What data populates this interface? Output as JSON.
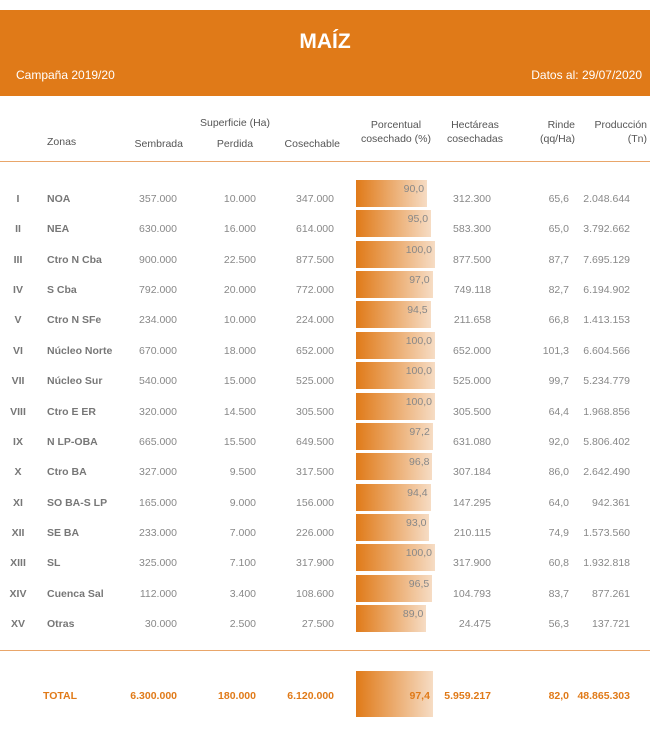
{
  "header": {
    "title": "MAÍZ",
    "campaign": "Campaña 2019/20",
    "date": "Datos al: 29/07/2020"
  },
  "columns": {
    "zonas": "Zonas",
    "superficie": "Superficie (Ha)",
    "sembrada": "Sembrada",
    "perdida": "Perdida",
    "cosechable": "Cosechable",
    "porcentual": "Porcentual",
    "porcentual2": "cosechado (%)",
    "hectareas": "Hectáreas",
    "hectareas2": "cosechadas",
    "rinde": "Rinde",
    "rinde2": "(qq/Ha)",
    "produccion": "Producción",
    "produccion2": "(Tn)"
  },
  "colors": {
    "accent": "#e07a18"
  },
  "rows": [
    {
      "n": "I",
      "zona": "NOA",
      "sembrada": "357.000",
      "perdida": "10.000",
      "cosechable": "347.000",
      "pct": "90,0",
      "pct_value": 90.0,
      "hectareas": "312.300",
      "rinde": "65,6",
      "produccion": "2.048.644"
    },
    {
      "n": "II",
      "zona": "NEA",
      "sembrada": "630.000",
      "perdida": "16.000",
      "cosechable": "614.000",
      "pct": "95,0",
      "pct_value": 95.0,
      "hectareas": "583.300",
      "rinde": "65,0",
      "produccion": "3.792.662"
    },
    {
      "n": "III",
      "zona": "Ctro N Cba",
      "sembrada": "900.000",
      "perdida": "22.500",
      "cosechable": "877.500",
      "pct": "100,0",
      "pct_value": 100.0,
      "hectareas": "877.500",
      "rinde": "87,7",
      "produccion": "7.695.129"
    },
    {
      "n": "IV",
      "zona": "S Cba",
      "sembrada": "792.000",
      "perdida": "20.000",
      "cosechable": "772.000",
      "pct": "97,0",
      "pct_value": 97.0,
      "hectareas": "749.118",
      "rinde": "82,7",
      "produccion": "6.194.902"
    },
    {
      "n": "V",
      "zona": "Ctro N SFe",
      "sembrada": "234.000",
      "perdida": "10.000",
      "cosechable": "224.000",
      "pct": "94,5",
      "pct_value": 94.5,
      "hectareas": "211.658",
      "rinde": "66,8",
      "produccion": "1.413.153"
    },
    {
      "n": "VI",
      "zona": "Núcleo Norte",
      "sembrada": "670.000",
      "perdida": "18.000",
      "cosechable": "652.000",
      "pct": "100,0",
      "pct_value": 100.0,
      "hectareas": "652.000",
      "rinde": "101,3",
      "produccion": "6.604.566"
    },
    {
      "n": "VII",
      "zona": "Núcleo Sur",
      "sembrada": "540.000",
      "perdida": "15.000",
      "cosechable": "525.000",
      "pct": "100,0",
      "pct_value": 100.0,
      "hectareas": "525.000",
      "rinde": "99,7",
      "produccion": "5.234.779"
    },
    {
      "n": "VIII",
      "zona": "Ctro E ER",
      "sembrada": "320.000",
      "perdida": "14.500",
      "cosechable": "305.500",
      "pct": "100,0",
      "pct_value": 100.0,
      "hectareas": "305.500",
      "rinde": "64,4",
      "produccion": "1.968.856"
    },
    {
      "n": "IX",
      "zona": "N LP-OBA",
      "sembrada": "665.000",
      "perdida": "15.500",
      "cosechable": "649.500",
      "pct": "97,2",
      "pct_value": 97.2,
      "hectareas": "631.080",
      "rinde": "92,0",
      "produccion": "5.806.402"
    },
    {
      "n": "X",
      "zona": "Ctro BA",
      "sembrada": "327.000",
      "perdida": "9.500",
      "cosechable": "317.500",
      "pct": "96,8",
      "pct_value": 96.8,
      "hectareas": "307.184",
      "rinde": "86,0",
      "produccion": "2.642.490"
    },
    {
      "n": "XI",
      "zona": "SO BA-S LP",
      "sembrada": "165.000",
      "perdida": "9.000",
      "cosechable": "156.000",
      "pct": "94,4",
      "pct_value": 94.4,
      "hectareas": "147.295",
      "rinde": "64,0",
      "produccion": "942.361"
    },
    {
      "n": "XII",
      "zona": "SE BA",
      "sembrada": "233.000",
      "perdida": "7.000",
      "cosechable": "226.000",
      "pct": "93,0",
      "pct_value": 93.0,
      "hectareas": "210.115",
      "rinde": "74,9",
      "produccion": "1.573.560"
    },
    {
      "n": "XIII",
      "zona": "SL",
      "sembrada": "325.000",
      "perdida": "7.100",
      "cosechable": "317.900",
      "pct": "100,0",
      "pct_value": 100.0,
      "hectareas": "317.900",
      "rinde": "60,8",
      "produccion": "1.932.818"
    },
    {
      "n": "XIV",
      "zona": "Cuenca Sal",
      "sembrada": "112.000",
      "perdida": "3.400",
      "cosechable": "108.600",
      "pct": "96,5",
      "pct_value": 96.5,
      "hectareas": "104.793",
      "rinde": "83,7",
      "produccion": "877.261"
    },
    {
      "n": "XV",
      "zona": "Otras",
      "sembrada": "30.000",
      "perdida": "2.500",
      "cosechable": "27.500",
      "pct": "89,0",
      "pct_value": 89.0,
      "hectareas": "24.475",
      "rinde": "56,3",
      "produccion": "137.721"
    }
  ],
  "total": {
    "zona": "TOTAL",
    "sembrada": "6.300.000",
    "perdida": "180.000",
    "cosechable": "6.120.000",
    "pct": "97,4",
    "pct_value": 97.4,
    "hectareas": "5.959.217",
    "rinde": "82,0",
    "produccion": "48.865.303"
  }
}
